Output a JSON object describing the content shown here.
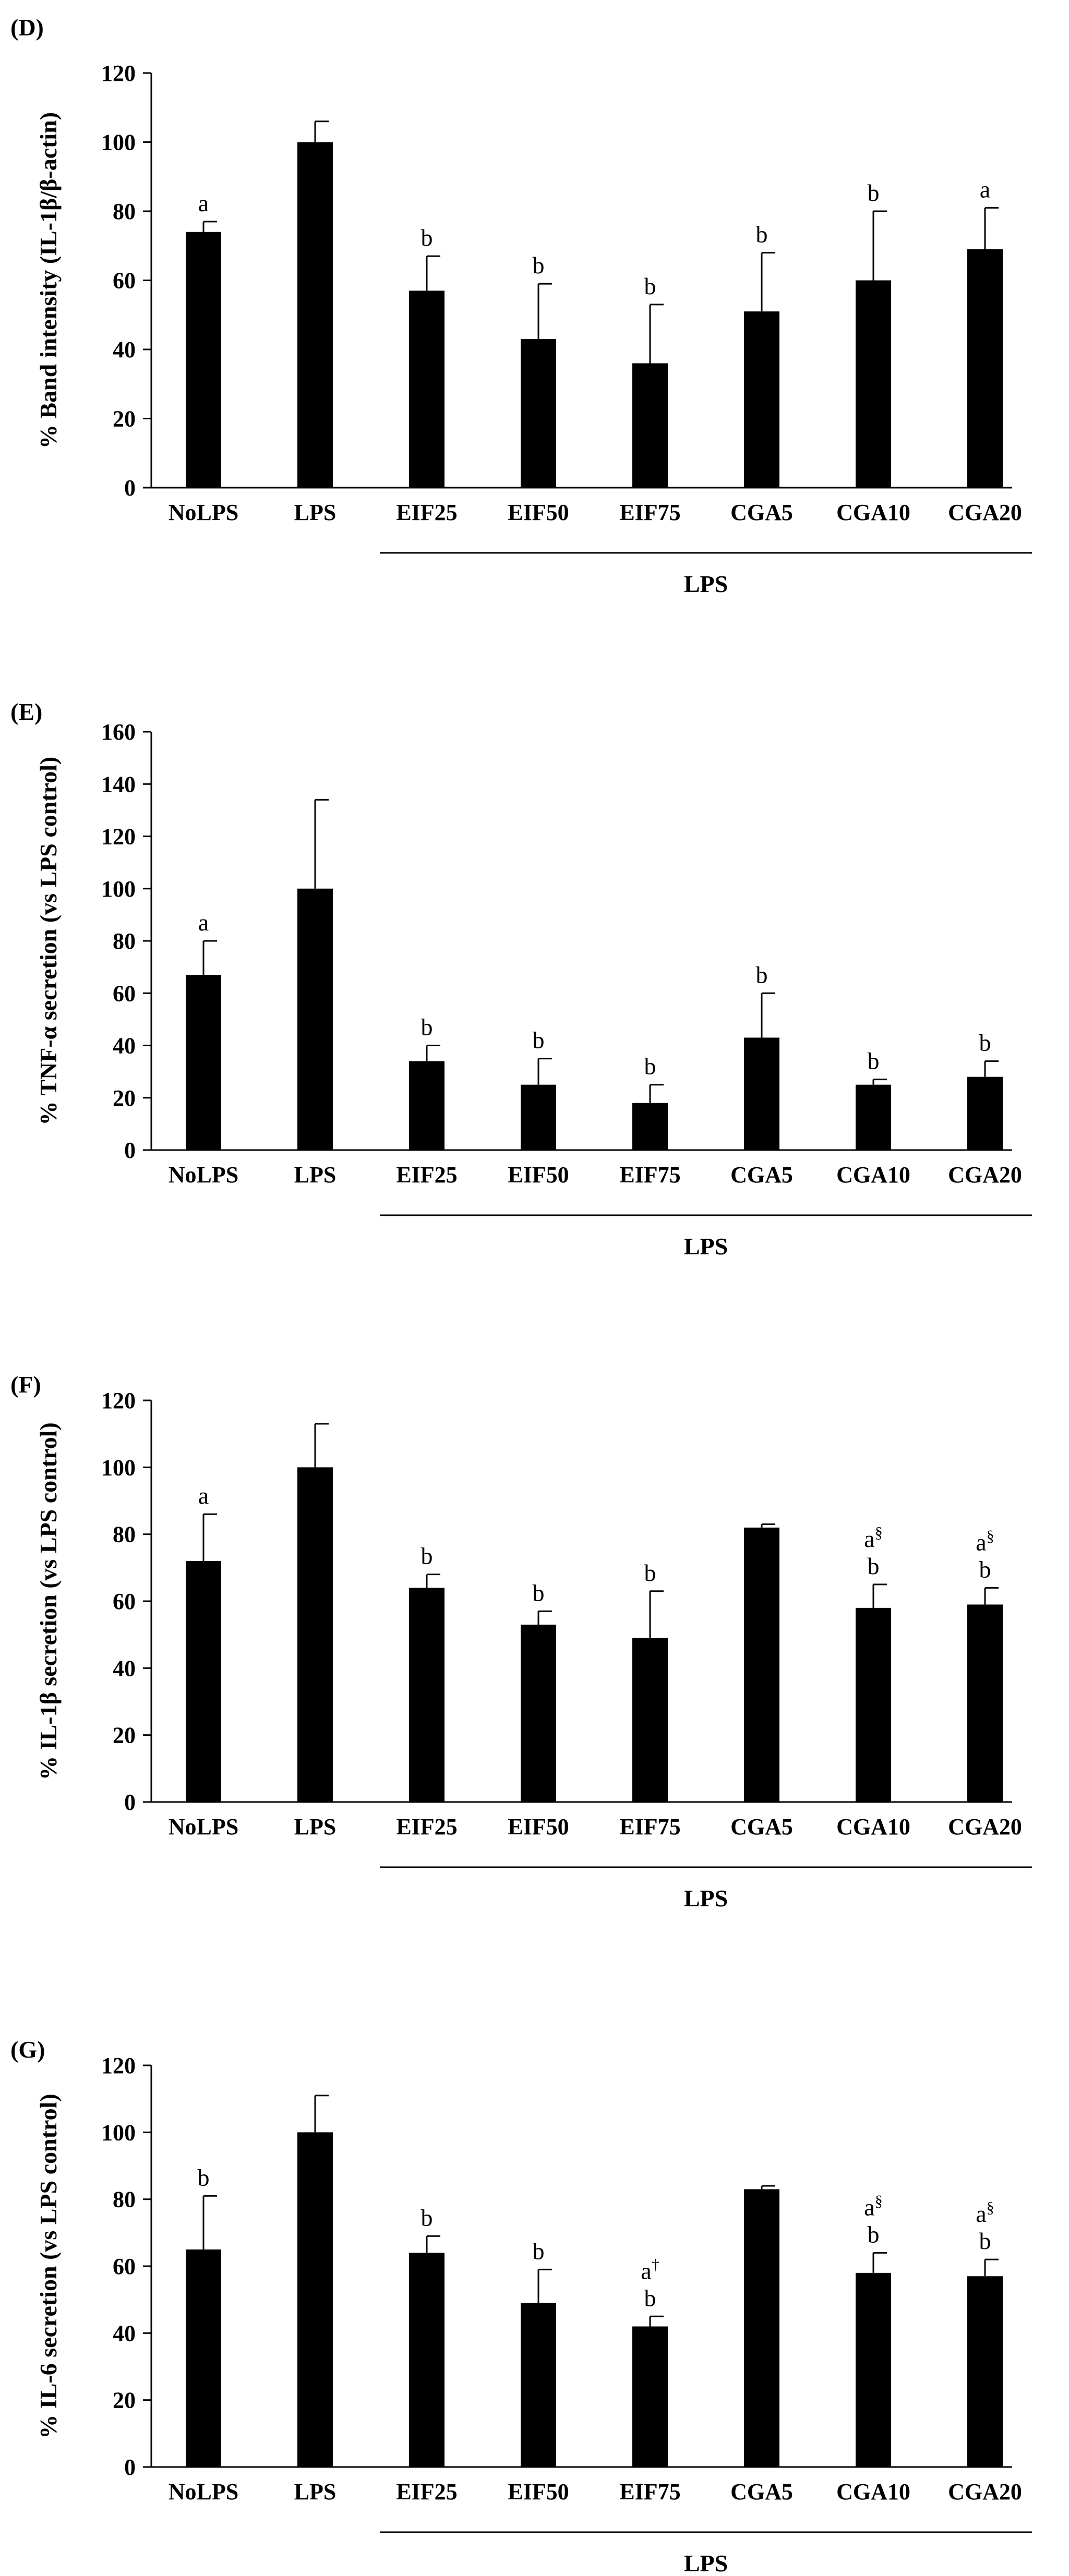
{
  "chart_data": [
    {
      "type": "bar",
      "panel": "(D)",
      "title": "",
      "xlabel": "",
      "ylabel": "% Band intensity (IL-1β/β-actin)",
      "ylim": [
        0,
        120
      ],
      "yticks": [
        0,
        20,
        40,
        60,
        80,
        100,
        120
      ],
      "categories": [
        "NoLPS",
        "LPS",
        "EIF25",
        "EIF50",
        "EIF75",
        "CGA5",
        "CGA10",
        "CGA20"
      ],
      "values": [
        74,
        100,
        57,
        43,
        36,
        51,
        60,
        69
      ],
      "errors": [
        3,
        6,
        10,
        16,
        17,
        17,
        20,
        12
      ],
      "annotations": [
        [
          "a"
        ],
        [],
        [
          "b"
        ],
        [
          "b"
        ],
        [
          "b"
        ],
        [
          "b"
        ],
        [
          "b"
        ],
        [
          "a"
        ]
      ],
      "group_label": "LPS",
      "group_from": "EIF25",
      "group_to": "CGA20",
      "grid": false
    },
    {
      "type": "bar",
      "panel": "(E)",
      "title": "",
      "xlabel": "",
      "ylabel": "% TNF-α secretion (vs LPS control)",
      "ylim": [
        0,
        160
      ],
      "yticks": [
        0,
        20,
        40,
        60,
        80,
        100,
        120,
        140,
        160
      ],
      "categories": [
        "NoLPS",
        "LPS",
        "EIF25",
        "EIF50",
        "EIF75",
        "CGA5",
        "CGA10",
        "CGA20"
      ],
      "values": [
        67,
        100,
        34,
        25,
        18,
        43,
        25,
        28
      ],
      "errors": [
        13,
        34,
        6,
        10,
        7,
        17,
        2,
        6
      ],
      "annotations": [
        [
          "a"
        ],
        [],
        [
          "b"
        ],
        [
          "b"
        ],
        [
          "b"
        ],
        [
          "b"
        ],
        [
          "b"
        ],
        [
          "b"
        ]
      ],
      "group_label": "LPS",
      "group_from": "EIF25",
      "group_to": "CGA20",
      "grid": false
    },
    {
      "type": "bar",
      "panel": "(F)",
      "title": "",
      "xlabel": "",
      "ylabel": "% IL-1β secretion (vs LPS control)",
      "ylim": [
        0,
        120
      ],
      "yticks": [
        0,
        20,
        40,
        60,
        80,
        100,
        120
      ],
      "categories": [
        "NoLPS",
        "LPS",
        "EIF25",
        "EIF50",
        "EIF75",
        "CGA5",
        "CGA10",
        "CGA20"
      ],
      "values": [
        72,
        100,
        64,
        53,
        49,
        82,
        58,
        59
      ],
      "errors": [
        14,
        13,
        4,
        4,
        14,
        1,
        7,
        5
      ],
      "annotations": [
        [
          "a"
        ],
        [],
        [
          "b"
        ],
        [
          "b"
        ],
        [
          "b"
        ],
        [],
        [
          "a§",
          "b"
        ],
        [
          "a§",
          "b"
        ]
      ],
      "group_label": "LPS",
      "group_from": "EIF25",
      "group_to": "CGA20",
      "grid": false
    },
    {
      "type": "bar",
      "panel": "(G)",
      "title": "",
      "xlabel": "",
      "ylabel": "% IL-6 secretion (vs LPS control)",
      "ylim": [
        0,
        120
      ],
      "yticks": [
        0,
        20,
        40,
        60,
        80,
        100,
        120
      ],
      "categories": [
        "NoLPS",
        "LPS",
        "EIF25",
        "EIF50",
        "EIF75",
        "CGA5",
        "CGA10",
        "CGA20"
      ],
      "values": [
        65,
        100,
        64,
        49,
        42,
        83,
        58,
        57
      ],
      "errors": [
        16,
        11,
        5,
        10,
        3,
        1,
        6,
        5
      ],
      "annotations": [
        [
          "b"
        ],
        [],
        [
          "b"
        ],
        [
          "b"
        ],
        [
          "a†",
          "b"
        ],
        [],
        [
          "a§",
          "b"
        ],
        [
          "a§",
          "b"
        ]
      ],
      "group_label": "LPS",
      "group_from": "EIF25",
      "group_to": "CGA20",
      "grid": false
    }
  ]
}
